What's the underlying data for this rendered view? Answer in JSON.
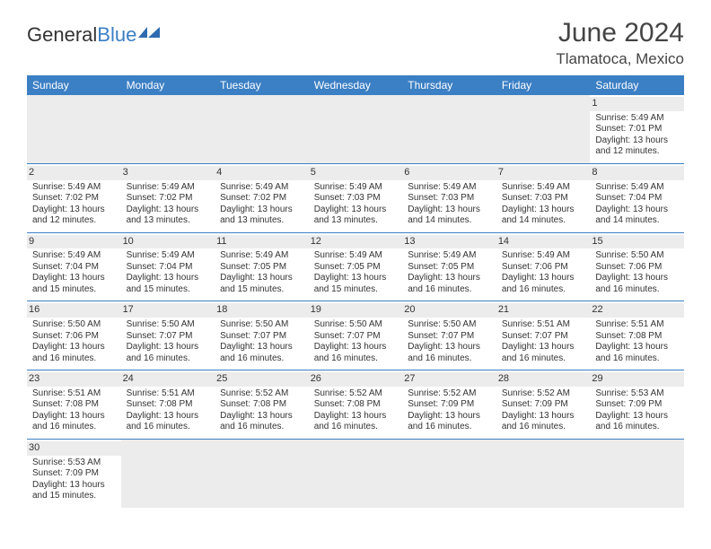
{
  "logo": {
    "general": "General",
    "blue": "Blue"
  },
  "title": "June 2024",
  "location": "Tlamatoca, Mexico",
  "colors": {
    "header_bg": "#3b7fc4",
    "header_text": "#ffffff",
    "shade_bg": "#ececec",
    "text": "#333333",
    "rule": "#3b7fc4"
  },
  "font": {
    "family": "Arial",
    "cell_size_pt": 7.5,
    "title_size_pt": 22
  },
  "weekdays": [
    "Sunday",
    "Monday",
    "Tuesday",
    "Wednesday",
    "Thursday",
    "Friday",
    "Saturday"
  ],
  "weeks": [
    [
      null,
      null,
      null,
      null,
      null,
      null,
      {
        "n": "1",
        "sr": "Sunrise: 5:49 AM",
        "ss": "Sunset: 7:01 PM",
        "dl": "Daylight: 13 hours and 12 minutes."
      }
    ],
    [
      {
        "n": "2",
        "sr": "Sunrise: 5:49 AM",
        "ss": "Sunset: 7:02 PM",
        "dl": "Daylight: 13 hours and 12 minutes."
      },
      {
        "n": "3",
        "sr": "Sunrise: 5:49 AM",
        "ss": "Sunset: 7:02 PM",
        "dl": "Daylight: 13 hours and 13 minutes."
      },
      {
        "n": "4",
        "sr": "Sunrise: 5:49 AM",
        "ss": "Sunset: 7:02 PM",
        "dl": "Daylight: 13 hours and 13 minutes."
      },
      {
        "n": "5",
        "sr": "Sunrise: 5:49 AM",
        "ss": "Sunset: 7:03 PM",
        "dl": "Daylight: 13 hours and 13 minutes."
      },
      {
        "n": "6",
        "sr": "Sunrise: 5:49 AM",
        "ss": "Sunset: 7:03 PM",
        "dl": "Daylight: 13 hours and 14 minutes."
      },
      {
        "n": "7",
        "sr": "Sunrise: 5:49 AM",
        "ss": "Sunset: 7:03 PM",
        "dl": "Daylight: 13 hours and 14 minutes."
      },
      {
        "n": "8",
        "sr": "Sunrise: 5:49 AM",
        "ss": "Sunset: 7:04 PM",
        "dl": "Daylight: 13 hours and 14 minutes."
      }
    ],
    [
      {
        "n": "9",
        "sr": "Sunrise: 5:49 AM",
        "ss": "Sunset: 7:04 PM",
        "dl": "Daylight: 13 hours and 15 minutes."
      },
      {
        "n": "10",
        "sr": "Sunrise: 5:49 AM",
        "ss": "Sunset: 7:04 PM",
        "dl": "Daylight: 13 hours and 15 minutes."
      },
      {
        "n": "11",
        "sr": "Sunrise: 5:49 AM",
        "ss": "Sunset: 7:05 PM",
        "dl": "Daylight: 13 hours and 15 minutes."
      },
      {
        "n": "12",
        "sr": "Sunrise: 5:49 AM",
        "ss": "Sunset: 7:05 PM",
        "dl": "Daylight: 13 hours and 15 minutes."
      },
      {
        "n": "13",
        "sr": "Sunrise: 5:49 AM",
        "ss": "Sunset: 7:05 PM",
        "dl": "Daylight: 13 hours and 16 minutes."
      },
      {
        "n": "14",
        "sr": "Sunrise: 5:49 AM",
        "ss": "Sunset: 7:06 PM",
        "dl": "Daylight: 13 hours and 16 minutes."
      },
      {
        "n": "15",
        "sr": "Sunrise: 5:50 AM",
        "ss": "Sunset: 7:06 PM",
        "dl": "Daylight: 13 hours and 16 minutes."
      }
    ],
    [
      {
        "n": "16",
        "sr": "Sunrise: 5:50 AM",
        "ss": "Sunset: 7:06 PM",
        "dl": "Daylight: 13 hours and 16 minutes."
      },
      {
        "n": "17",
        "sr": "Sunrise: 5:50 AM",
        "ss": "Sunset: 7:07 PM",
        "dl": "Daylight: 13 hours and 16 minutes."
      },
      {
        "n": "18",
        "sr": "Sunrise: 5:50 AM",
        "ss": "Sunset: 7:07 PM",
        "dl": "Daylight: 13 hours and 16 minutes."
      },
      {
        "n": "19",
        "sr": "Sunrise: 5:50 AM",
        "ss": "Sunset: 7:07 PM",
        "dl": "Daylight: 13 hours and 16 minutes."
      },
      {
        "n": "20",
        "sr": "Sunrise: 5:50 AM",
        "ss": "Sunset: 7:07 PM",
        "dl": "Daylight: 13 hours and 16 minutes."
      },
      {
        "n": "21",
        "sr": "Sunrise: 5:51 AM",
        "ss": "Sunset: 7:07 PM",
        "dl": "Daylight: 13 hours and 16 minutes."
      },
      {
        "n": "22",
        "sr": "Sunrise: 5:51 AM",
        "ss": "Sunset: 7:08 PM",
        "dl": "Daylight: 13 hours and 16 minutes."
      }
    ],
    [
      {
        "n": "23",
        "sr": "Sunrise: 5:51 AM",
        "ss": "Sunset: 7:08 PM",
        "dl": "Daylight: 13 hours and 16 minutes."
      },
      {
        "n": "24",
        "sr": "Sunrise: 5:51 AM",
        "ss": "Sunset: 7:08 PM",
        "dl": "Daylight: 13 hours and 16 minutes."
      },
      {
        "n": "25",
        "sr": "Sunrise: 5:52 AM",
        "ss": "Sunset: 7:08 PM",
        "dl": "Daylight: 13 hours and 16 minutes."
      },
      {
        "n": "26",
        "sr": "Sunrise: 5:52 AM",
        "ss": "Sunset: 7:08 PM",
        "dl": "Daylight: 13 hours and 16 minutes."
      },
      {
        "n": "27",
        "sr": "Sunrise: 5:52 AM",
        "ss": "Sunset: 7:09 PM",
        "dl": "Daylight: 13 hours and 16 minutes."
      },
      {
        "n": "28",
        "sr": "Sunrise: 5:52 AM",
        "ss": "Sunset: 7:09 PM",
        "dl": "Daylight: 13 hours and 16 minutes."
      },
      {
        "n": "29",
        "sr": "Sunrise: 5:53 AM",
        "ss": "Sunset: 7:09 PM",
        "dl": "Daylight: 13 hours and 16 minutes."
      }
    ],
    [
      {
        "n": "30",
        "sr": "Sunrise: 5:53 AM",
        "ss": "Sunset: 7:09 PM",
        "dl": "Daylight: 13 hours and 15 minutes."
      },
      null,
      null,
      null,
      null,
      null,
      null
    ]
  ]
}
